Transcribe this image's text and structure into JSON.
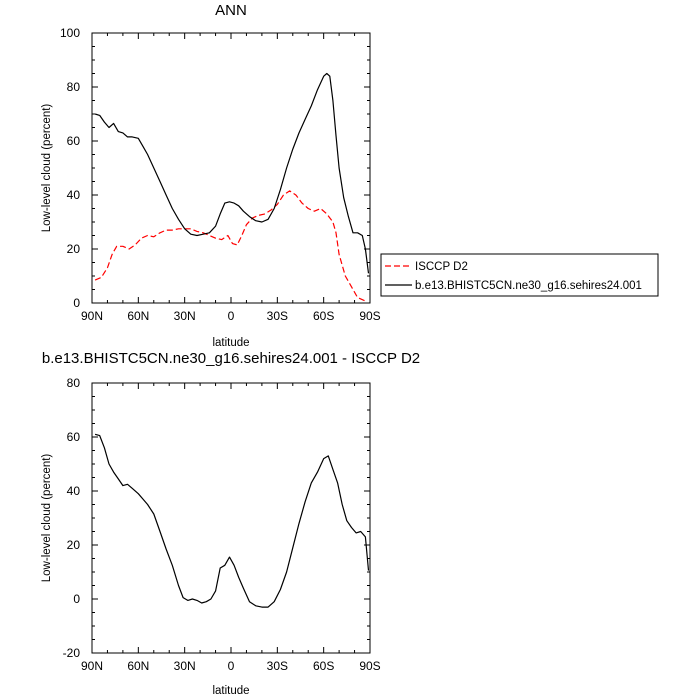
{
  "chart_data": [
    {
      "type": "line",
      "title": "ANN",
      "xlabel": "latitude",
      "ylabel": "Low-level cloud (percent)",
      "xlim": [
        90,
        -90
      ],
      "ylim": [
        0,
        100
      ],
      "xticks": [
        90,
        60,
        30,
        0,
        -30,
        -60,
        -90
      ],
      "xtick_labels": [
        "90N",
        "60N",
        "30N",
        "0",
        "30S",
        "60S",
        "90S"
      ],
      "yticks": [
        0,
        20,
        40,
        60,
        80,
        100
      ],
      "ytick_labels": [
        "0",
        "20",
        "40",
        "60",
        "80",
        "100"
      ],
      "legend": {
        "location": "outside-right"
      },
      "series": [
        {
          "name": "ISCCP D2",
          "color": "#ff0000",
          "dash": "dashed",
          "x": [
            88,
            84,
            80,
            77,
            74,
            70,
            66,
            62,
            58,
            54,
            50,
            46,
            42,
            38,
            34,
            30,
            26,
            22,
            18,
            14,
            10,
            6,
            2,
            -1,
            -4,
            -7,
            -10,
            -14,
            -18,
            -22,
            -26,
            -30,
            -34,
            -38,
            -42,
            -46,
            -50,
            -54,
            -58,
            -62,
            -66,
            -68,
            -70,
            -74,
            -78,
            -82,
            -86,
            -88
          ],
          "y": [
            8.5,
            9.5,
            13,
            18,
            21,
            21,
            20,
            21.5,
            24,
            25,
            24.5,
            26,
            27,
            27,
            27.5,
            27.5,
            27.5,
            26.5,
            26,
            25,
            24,
            23.5,
            25,
            22,
            21.5,
            25,
            29,
            31.5,
            32.5,
            33,
            34.5,
            36.5,
            40,
            41.5,
            40,
            37,
            35,
            34,
            35,
            33,
            30,
            26,
            18,
            10,
            6,
            2,
            1,
            0.3
          ]
        },
        {
          "name": "b.e13.BHISTC5CN.ne30_g16.sehires24.001",
          "color": "#000000",
          "dash": "solid",
          "x": [
            88,
            85,
            82,
            79,
            76,
            73,
            70,
            67,
            64,
            60,
            57,
            54,
            50,
            46,
            42,
            38,
            34,
            30,
            26,
            22,
            18,
            14,
            10,
            7,
            4,
            1,
            -2,
            -5,
            -8,
            -12,
            -16,
            -20,
            -24,
            -28,
            -32,
            -36,
            -40,
            -44,
            -48,
            -52,
            -56,
            -60,
            -62,
            -64,
            -66,
            -68,
            -70,
            -73,
            -76,
            -79,
            -82,
            -85,
            -87,
            -89
          ],
          "y": [
            70,
            69.5,
            67,
            65,
            66.5,
            63.5,
            63,
            61.5,
            61.5,
            61,
            58,
            55,
            50,
            45,
            40,
            35,
            31,
            27.5,
            25.5,
            25,
            25.5,
            26,
            28.5,
            33,
            37,
            37.5,
            37,
            36,
            34,
            32,
            30.5,
            30,
            31,
            35,
            42,
            50,
            57,
            63,
            68,
            73,
            79,
            84,
            85,
            84,
            75,
            62,
            50,
            39,
            32,
            26,
            26,
            25,
            20,
            11
          ]
        }
      ]
    },
    {
      "type": "line",
      "title": "b.e13.BHISTC5CN.ne30_g16.sehires24.001 - ISCCP D2",
      "xlabel": "latitude",
      "ylabel": "Low-level cloud (percent)",
      "xlim": [
        90,
        -90
      ],
      "ylim": [
        -20,
        80
      ],
      "xticks": [
        90,
        60,
        30,
        0,
        -30,
        -60,
        -90
      ],
      "xtick_labels": [
        "90N",
        "60N",
        "30N",
        "0",
        "30S",
        "60S",
        "90S"
      ],
      "yticks": [
        -20,
        0,
        20,
        40,
        60,
        80
      ],
      "ytick_labels": [
        "-20",
        "0",
        "20",
        "40",
        "60",
        "80"
      ],
      "series": [
        {
          "name": "b.e13.BHISTC5CN.ne30_g16.sehires24.001 - ISCCP D2",
          "color": "#000000",
          "dash": "solid",
          "x": [
            88,
            85,
            82,
            79,
            76,
            73,
            70,
            67,
            64,
            60,
            57,
            54,
            50,
            46,
            42,
            38,
            34,
            31,
            28,
            25,
            22,
            19,
            16,
            13,
            10,
            7,
            4,
            1,
            -2,
            -5,
            -8,
            -12,
            -16,
            -20,
            -24,
            -28,
            -32,
            -36,
            -40,
            -44,
            -48,
            -52,
            -56,
            -60,
            -63,
            -66,
            -69,
            -72,
            -75,
            -78,
            -81,
            -84,
            -87,
            -89
          ],
          "y": [
            61,
            60.5,
            56,
            50,
            47,
            44.5,
            42,
            42.5,
            41,
            39,
            37,
            35,
            31.5,
            25,
            18.5,
            12.5,
            5,
            0.5,
            -0.5,
            0,
            -0.5,
            -1.5,
            -1,
            0,
            3,
            11.5,
            12.5,
            15.5,
            12.5,
            8,
            4,
            -1,
            -2.5,
            -3,
            -3,
            -1,
            3.5,
            10,
            19,
            28,
            36,
            43,
            47,
            52,
            53,
            48,
            43,
            35,
            29,
            26.5,
            24.5,
            25,
            23,
            10.5
          ]
        }
      ]
    }
  ]
}
